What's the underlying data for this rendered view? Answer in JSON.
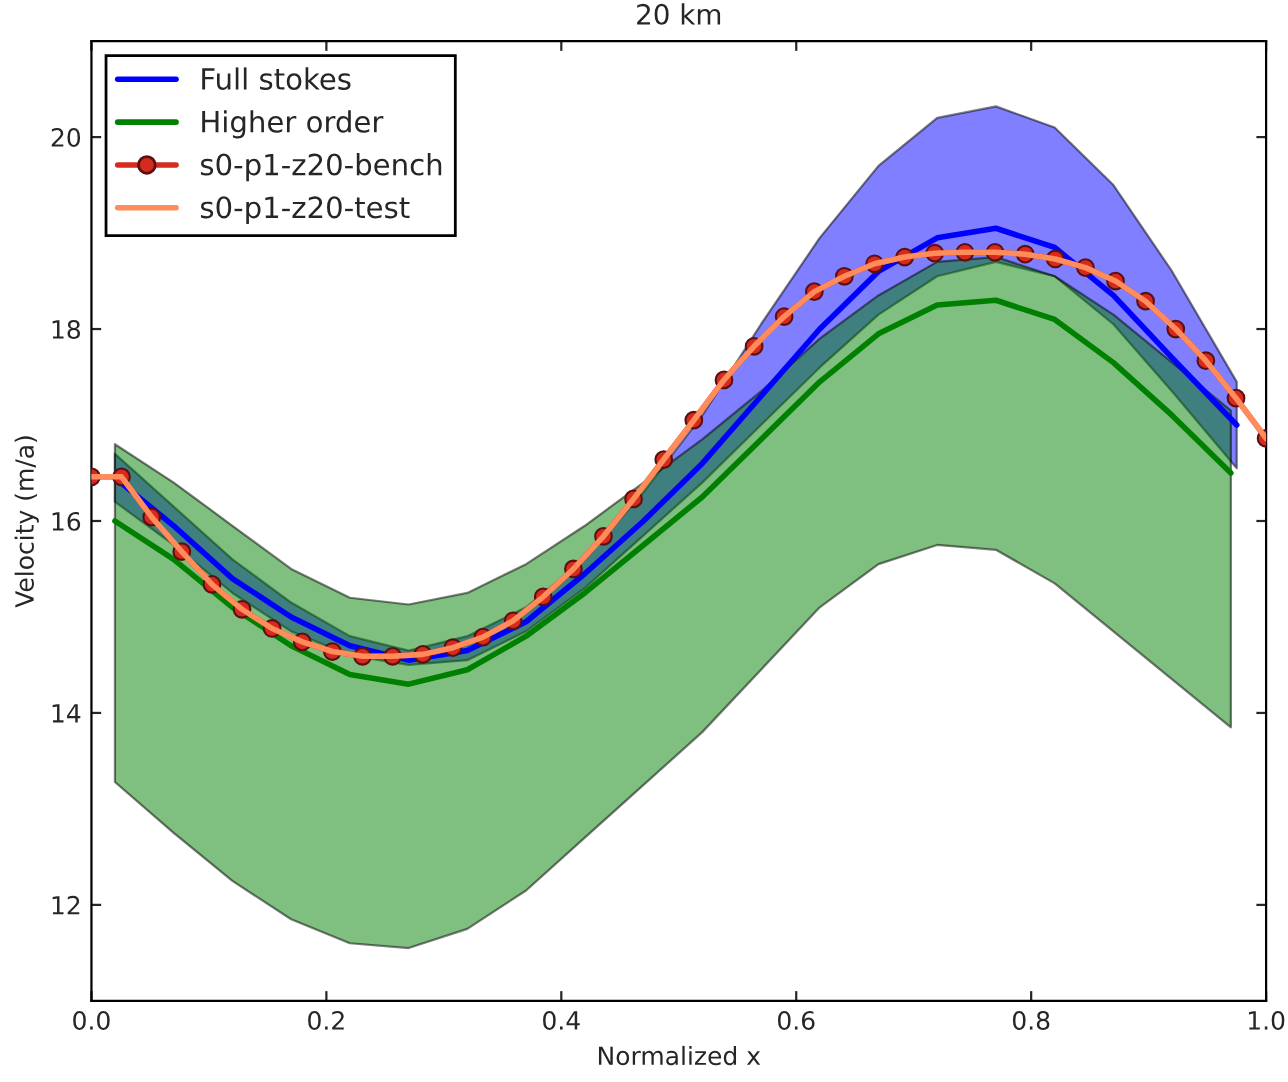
{
  "chart_data": {
    "type": "line",
    "title": "20 km",
    "xlabel": "Normalized x",
    "ylabel": "Velocity (m/a)",
    "xlim": [
      0,
      1
    ],
    "xticks": [
      {
        "value": 0,
        "label": "0.0"
      },
      0.2,
      0.4,
      0.6,
      0.8,
      {
        "value": 1,
        "label": "1.0"
      }
    ],
    "ylim": [
      11,
      21
    ],
    "yticks": [
      12,
      14,
      16,
      18,
      20
    ],
    "grid": false,
    "legend": "top left",
    "series": [
      {
        "name": "Full stokes",
        "color": "#0000ff",
        "marker": "none",
        "x": [
          0.02,
          0.07,
          0.12,
          0.17,
          0.22,
          0.27,
          0.32,
          0.37,
          0.42,
          0.47,
          0.52,
          0.57,
          0.62,
          0.67,
          0.72,
          0.77,
          0.82,
          0.87,
          0.92,
          0.975
        ],
        "values": [
          16.45,
          15.95,
          15.4,
          15.0,
          14.7,
          14.55,
          14.65,
          14.95,
          15.45,
          16.0,
          16.6,
          17.3,
          18.0,
          18.6,
          18.95,
          19.05,
          18.85,
          18.35,
          17.7,
          17.0
        ],
        "lower": [
          16.2,
          15.75,
          15.25,
          14.85,
          14.6,
          14.5,
          14.55,
          14.85,
          15.3,
          15.85,
          16.4,
          17.0,
          17.6,
          18.15,
          18.55,
          18.7,
          18.55,
          18.05,
          17.35,
          16.55
        ],
        "upper": [
          16.7,
          16.15,
          15.6,
          15.15,
          14.8,
          14.65,
          14.8,
          15.1,
          15.6,
          16.3,
          17.1,
          18.05,
          18.95,
          19.7,
          20.2,
          20.32,
          20.1,
          19.5,
          18.6,
          17.45
        ]
      },
      {
        "name": "Higher order",
        "color": "#008000",
        "marker": "none",
        "x": [
          0.02,
          0.07,
          0.12,
          0.17,
          0.22,
          0.27,
          0.32,
          0.37,
          0.42,
          0.47,
          0.52,
          0.57,
          0.62,
          0.67,
          0.72,
          0.77,
          0.82,
          0.87,
          0.92,
          0.97
        ],
        "values": [
          16.0,
          15.6,
          15.1,
          14.7,
          14.4,
          14.3,
          14.45,
          14.8,
          15.25,
          15.75,
          16.25,
          16.85,
          17.45,
          17.95,
          18.25,
          18.3,
          18.1,
          17.65,
          17.1,
          16.5
        ],
        "lower": [
          13.28,
          12.75,
          12.25,
          11.85,
          11.6,
          11.55,
          11.75,
          12.15,
          12.7,
          13.25,
          13.8,
          14.45,
          15.1,
          15.55,
          15.75,
          15.7,
          15.35,
          14.85,
          14.35,
          13.85
        ],
        "upper": [
          16.8,
          16.4,
          15.95,
          15.5,
          15.2,
          15.13,
          15.25,
          15.55,
          15.95,
          16.4,
          16.85,
          17.35,
          17.9,
          18.35,
          18.7,
          18.75,
          18.55,
          18.15,
          17.65,
          17.15
        ]
      },
      {
        "name": "s0-p1-z20-bench",
        "color": "#d62a1e",
        "marker": "circle",
        "x": [
          0,
          0.0256,
          0.0513,
          0.0769,
          0.1026,
          0.1282,
          0.1538,
          0.1795,
          0.2051,
          0.2308,
          0.2564,
          0.2821,
          0.3077,
          0.3333,
          0.359,
          0.3846,
          0.4103,
          0.4359,
          0.4615,
          0.4872,
          0.5128,
          0.5385,
          0.5641,
          0.5897,
          0.6154,
          0.641,
          0.6667,
          0.6923,
          0.7179,
          0.7436,
          0.7692,
          0.7949,
          0.8205,
          0.8462,
          0.8718,
          0.8974,
          0.9231,
          0.9487,
          0.9744,
          1
        ],
        "values": [
          16.46,
          16.46,
          16.04,
          15.68,
          15.34,
          15.08,
          14.88,
          14.74,
          14.64,
          14.59,
          14.59,
          14.61,
          14.68,
          14.79,
          14.96,
          15.21,
          15.5,
          15.84,
          16.23,
          16.64,
          17.05,
          17.47,
          17.82,
          18.13,
          18.39,
          18.55,
          18.68,
          18.75,
          18.79,
          18.8,
          18.8,
          18.78,
          18.73,
          18.64,
          18.5,
          18.29,
          18.0,
          17.67,
          17.28,
          16.86
        ]
      },
      {
        "name": "s0-p1-z20-test",
        "color": "#ff8c5a",
        "marker": "none",
        "x": [
          0,
          0.0256,
          0.0513,
          0.0769,
          0.1026,
          0.1282,
          0.1538,
          0.1795,
          0.2051,
          0.2308,
          0.2564,
          0.2821,
          0.3077,
          0.3333,
          0.359,
          0.3846,
          0.4103,
          0.4359,
          0.4615,
          0.4872,
          0.5128,
          0.5385,
          0.5641,
          0.5897,
          0.6154,
          0.641,
          0.6667,
          0.6923,
          0.7179,
          0.7436,
          0.7692,
          0.7949,
          0.8205,
          0.8462,
          0.8718,
          0.8974,
          0.9231,
          0.9487,
          0.9744,
          1
        ],
        "values": [
          16.46,
          16.46,
          16.04,
          15.68,
          15.34,
          15.08,
          14.88,
          14.74,
          14.64,
          14.59,
          14.59,
          14.61,
          14.68,
          14.79,
          14.96,
          15.21,
          15.5,
          15.84,
          16.23,
          16.64,
          17.05,
          17.47,
          17.82,
          18.13,
          18.39,
          18.55,
          18.68,
          18.75,
          18.79,
          18.8,
          18.8,
          18.78,
          18.73,
          18.64,
          18.5,
          18.29,
          18.0,
          17.67,
          17.28,
          16.86
        ]
      }
    ]
  }
}
